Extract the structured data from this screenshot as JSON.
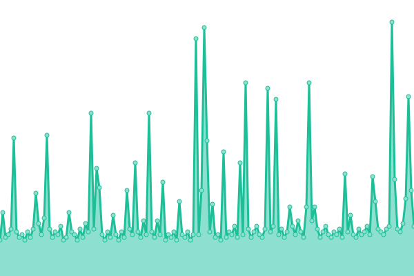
{
  "chart_data": {
    "type": "area",
    "title": "",
    "xlabel": "",
    "ylabel": "",
    "x": {
      "start": 0,
      "step": 1
    },
    "ylim": [
      0,
      100
    ],
    "grid": false,
    "legend": "none",
    "colors": {
      "line": "#1dbf98",
      "fill": "#8de0cf",
      "marker_fill": "#8de0cf"
    },
    "series": [
      {
        "values": [
          13,
          23,
          14,
          15,
          17,
          50,
          16,
          14,
          15,
          13,
          16,
          14,
          17,
          30,
          19,
          15,
          21,
          51,
          17,
          14,
          16,
          15,
          18,
          13,
          14,
          23,
          16,
          15,
          13,
          17,
          14,
          19,
          16,
          59,
          17,
          39,
          32,
          15,
          13,
          16,
          14,
          22,
          15,
          13,
          16,
          14,
          31,
          17,
          15,
          41,
          16,
          14,
          20,
          15,
          59,
          16,
          14,
          20,
          15,
          34,
          13,
          15,
          14,
          16,
          13,
          27,
          15,
          14,
          16,
          13,
          15,
          86,
          15,
          31,
          90,
          49,
          16,
          26,
          14,
          15,
          13,
          45,
          14,
          16,
          15,
          18,
          14,
          41,
          15,
          70,
          17,
          14,
          16,
          18,
          15,
          14,
          17,
          68,
          16,
          18,
          64,
          15,
          17,
          14,
          16,
          25,
          18,
          15,
          20,
          16,
          14,
          25,
          70,
          20,
          25,
          17,
          14,
          16,
          18,
          15,
          14,
          16,
          15,
          17,
          14,
          37,
          16,
          22,
          15,
          14,
          17,
          15,
          16,
          18,
          15,
          36,
          27,
          17,
          16,
          15,
          17,
          18,
          92,
          35,
          17,
          16,
          19,
          28,
          65,
          31,
          18
        ]
      }
    ]
  }
}
